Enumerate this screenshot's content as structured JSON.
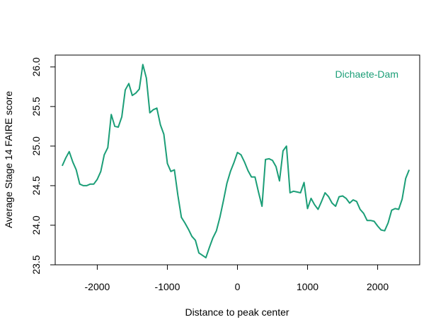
{
  "chart_data": {
    "type": "line",
    "xlabel": "Distance to peak center",
    "ylabel": "Average Stage 14 FAIRE score",
    "xlim": [
      -2600,
      2600
    ],
    "ylim": [
      23.5,
      26.15
    ],
    "xticks": [
      -2000,
      -1000,
      0,
      1000,
      2000
    ],
    "xtick_labels": [
      "-2000",
      "-1000",
      "0",
      "1000",
      "2000"
    ],
    "yticks": [
      23.5,
      24.0,
      24.5,
      25.0,
      25.5,
      26.0
    ],
    "ytick_labels": [
      "23.5",
      "24.0",
      "24.5",
      "25.0",
      "25.5",
      "26.0"
    ],
    "grid": false,
    "legend_position": "top-right",
    "series": [
      {
        "name": "Dichaete-Dam",
        "color": "#1b9e77",
        "x": [
          -2500,
          -2450,
          -2400,
          -2350,
          -2300,
          -2250,
          -2200,
          -2150,
          -2100,
          -2050,
          -2000,
          -1950,
          -1900,
          -1850,
          -1800,
          -1750,
          -1700,
          -1650,
          -1600,
          -1550,
          -1500,
          -1450,
          -1400,
          -1350,
          -1300,
          -1250,
          -1200,
          -1150,
          -1100,
          -1050,
          -1000,
          -950,
          -900,
          -850,
          -800,
          -750,
          -700,
          -650,
          -600,
          -550,
          -500,
          -450,
          -400,
          -350,
          -300,
          -250,
          -200,
          -150,
          -100,
          -50,
          0,
          50,
          100,
          150,
          200,
          250,
          300,
          350,
          400,
          450,
          500,
          550,
          600,
          650,
          700,
          750,
          800,
          850,
          900,
          950,
          1000,
          1050,
          1100,
          1150,
          1200,
          1250,
          1300,
          1350,
          1400,
          1450,
          1500,
          1550,
          1600,
          1650,
          1700,
          1750,
          1800,
          1850,
          1900,
          1950,
          2000,
          2050,
          2100,
          2150,
          2200,
          2250,
          2300,
          2350,
          2400,
          2450
        ],
        "y": [
          24.75,
          24.85,
          24.93,
          24.8,
          24.7,
          24.52,
          24.5,
          24.5,
          24.52,
          24.52,
          24.58,
          24.68,
          24.89,
          24.98,
          25.4,
          25.25,
          25.24,
          25.37,
          25.71,
          25.79,
          25.64,
          25.67,
          25.72,
          26.03,
          25.86,
          25.42,
          25.46,
          25.48,
          25.27,
          25.15,
          24.78,
          24.68,
          24.7,
          24.38,
          24.1,
          24.03,
          23.95,
          23.86,
          23.81,
          23.65,
          23.62,
          23.59,
          23.72,
          23.84,
          23.93,
          24.1,
          24.31,
          24.53,
          24.68,
          24.79,
          24.92,
          24.89,
          24.8,
          24.69,
          24.61,
          24.61,
          24.42,
          24.24,
          24.83,
          24.84,
          24.82,
          24.74,
          24.56,
          24.94,
          25.0,
          24.41,
          24.43,
          24.42,
          24.41,
          24.54,
          24.21,
          24.34,
          24.26,
          24.2,
          24.3,
          24.41,
          24.36,
          24.28,
          24.24,
          24.36,
          24.37,
          24.34,
          24.28,
          24.32,
          24.3,
          24.2,
          24.15,
          24.06,
          24.06,
          24.05,
          23.99,
          23.94,
          23.93,
          24.03,
          24.19,
          24.21,
          24.2,
          24.33,
          24.59,
          24.7
        ]
      }
    ]
  }
}
